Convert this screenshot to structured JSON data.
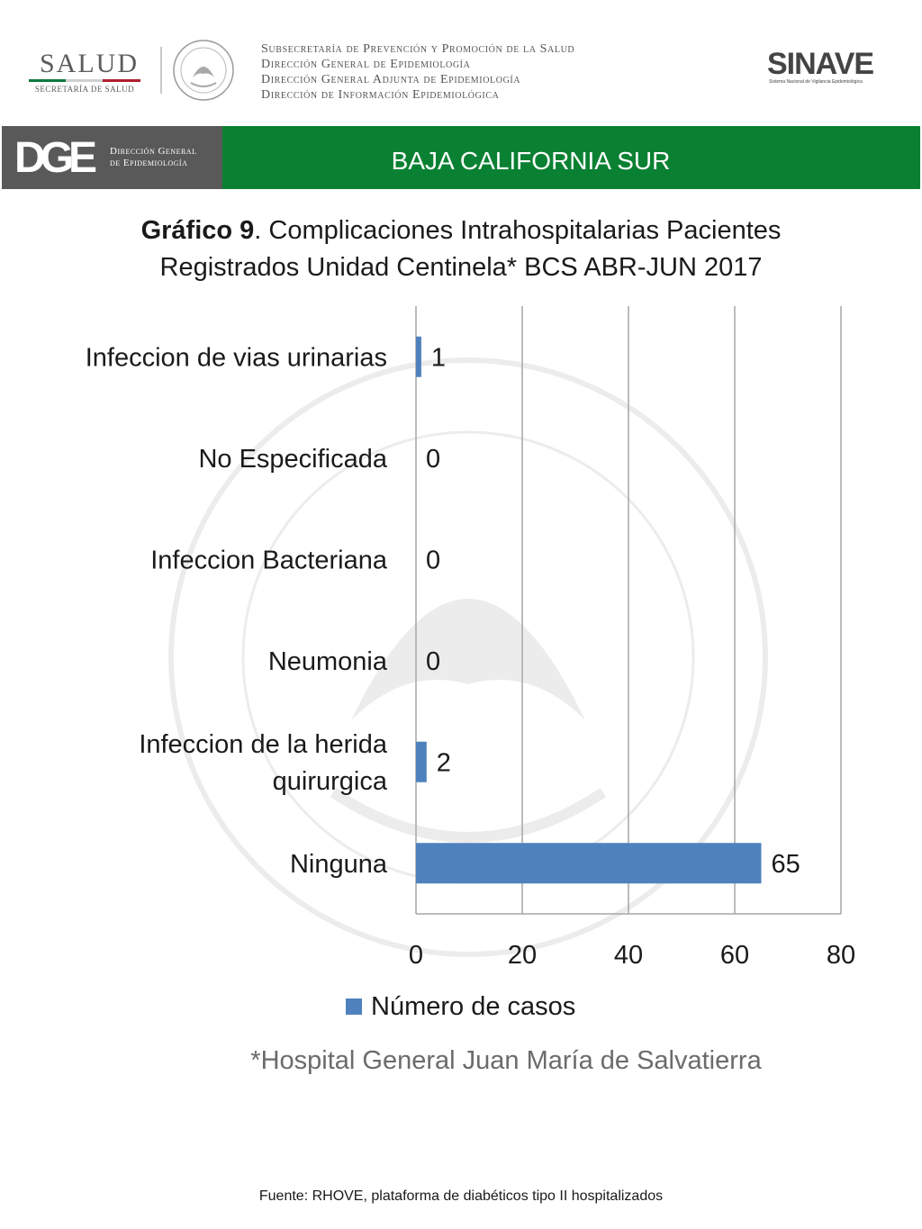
{
  "header": {
    "salud_word": "SALUD",
    "salud_sub": "SECRETARÍA DE SALUD",
    "dept_lines": [
      "Subsecretaría de Prevención y Promoción de la Salud",
      "Dirección General de Epidemiología",
      "Dirección General Adjunta de Epidemiología",
      "Dirección de Información Epidemiológica"
    ],
    "sinave_word": "SINAVE",
    "sinave_sub": "Sistema Nacional de Vigilancia Epidemiológica"
  },
  "banner": {
    "dge_mark": "DGE",
    "dge_text_1": "Dirección General",
    "dge_text_2": "de Epidemiología",
    "title": "BAJA CALIFORNIA SUR",
    "color_green": "#0a8132",
    "color_gray": "#595959"
  },
  "chart_title": {
    "bold": "Gráfico 9",
    "rest": ". Complicaciones Intrahospitalarias Pacientes",
    "line2": "Registrados Unidad Centinela* BCS  ABR-JUN 2017"
  },
  "chart_data": {
    "type": "bar",
    "orientation": "horizontal",
    "categories": [
      "Infeccion de vias urinarias",
      "No Especificada",
      "Infeccion Bacteriana",
      "Neumonia",
      "Infeccion de la herida quirurgica",
      "Ninguna"
    ],
    "category_lines": [
      [
        "Infeccion de vias urinarias"
      ],
      [
        "No Especificada"
      ],
      [
        "Infeccion Bacteriana"
      ],
      [
        "Neumonia"
      ],
      [
        "Infeccion de la herida",
        "quirurgica"
      ],
      [
        "Ninguna"
      ]
    ],
    "series": [
      {
        "name": "Número de casos",
        "values": [
          1,
          0,
          0,
          0,
          2,
          65
        ],
        "color": "#4f81bd"
      }
    ],
    "xlim": [
      0,
      80
    ],
    "xticks": [
      0,
      20,
      40,
      60,
      80
    ],
    "grid": true,
    "legend_position": "bottom"
  },
  "legend": {
    "label": "Número de casos"
  },
  "footnote": "*Hospital General Juan María de Salvatierra",
  "source": "Fuente: RHOVE, plataforma de diabéticos tipo II hospitalizados"
}
